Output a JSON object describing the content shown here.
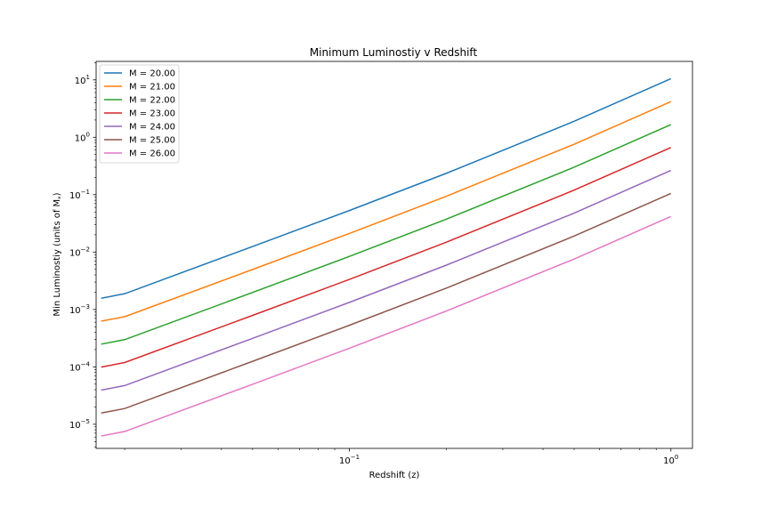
{
  "chart_data": {
    "type": "line",
    "title": "Minimum Luminostiy v Redshift",
    "xlabel": "Redshift (z)",
    "ylabel": "Min Luminostiy (units of M",
    "ylabel_sub": "*",
    "ylabel_close": ")",
    "xscale": "log",
    "yscale": "log",
    "xlim": [
      0.0163,
      1.167
    ],
    "ylim": [
      3.8e-06,
      21
    ],
    "grid": false,
    "legend_position": "upper-left",
    "x": [
      0.0169,
      0.02,
      0.05,
      0.1,
      0.2,
      0.5,
      1.0
    ],
    "xticks": [
      {
        "value": 0.1,
        "base": "10",
        "exp": "−1"
      },
      {
        "value": 1.0,
        "base": "10",
        "exp": "0"
      }
    ],
    "yticks": [
      {
        "value": 1e-05,
        "base": "10",
        "exp": "−5"
      },
      {
        "value": 0.0001,
        "base": "10",
        "exp": "−4"
      },
      {
        "value": 0.001,
        "base": "10",
        "exp": "−3"
      },
      {
        "value": 0.01,
        "base": "10",
        "exp": "−2"
      },
      {
        "value": 0.1,
        "base": "10",
        "exp": "−1"
      },
      {
        "value": 1,
        "base": "10",
        "exp": "0"
      },
      {
        "value": 10,
        "base": "10",
        "exp": "1"
      }
    ],
    "series": [
      {
        "name": "M = 20.00",
        "color": "#1f77b4",
        "values": [
          0.00157,
          0.00188,
          0.0125,
          0.053,
          0.235,
          1.9,
          10.5
        ]
      },
      {
        "name": "M = 21.00",
        "color": "#ff7f0e",
        "values": [
          0.000625,
          0.000748,
          0.00498,
          0.0211,
          0.0936,
          0.756,
          4.18
        ]
      },
      {
        "name": "M = 22.00",
        "color": "#2ca02c",
        "values": [
          0.000249,
          0.000298,
          0.00198,
          0.0084,
          0.0373,
          0.301,
          1.66
        ]
      },
      {
        "name": "M = 23.00",
        "color": "#d62728",
        "values": [
          9.91e-05,
          0.000119,
          0.000789,
          0.00334,
          0.0148,
          0.12,
          0.662
        ]
      },
      {
        "name": "M = 24.00",
        "color": "#9467bd",
        "values": [
          3.94e-05,
          4.72e-05,
          0.000314,
          0.00133,
          0.0059,
          0.0477,
          0.264
        ]
      },
      {
        "name": "M = 25.00",
        "color": "#8c564b",
        "values": [
          1.57e-05,
          1.88e-05,
          0.000125,
          0.00053,
          0.00235,
          0.019,
          0.105
        ]
      },
      {
        "name": "M = 26.00",
        "color": "#e377c2",
        "values": [
          6.25e-06,
          7.48e-06,
          4.98e-05,
          0.000211,
          0.000936,
          0.00756,
          0.0418
        ]
      }
    ]
  }
}
